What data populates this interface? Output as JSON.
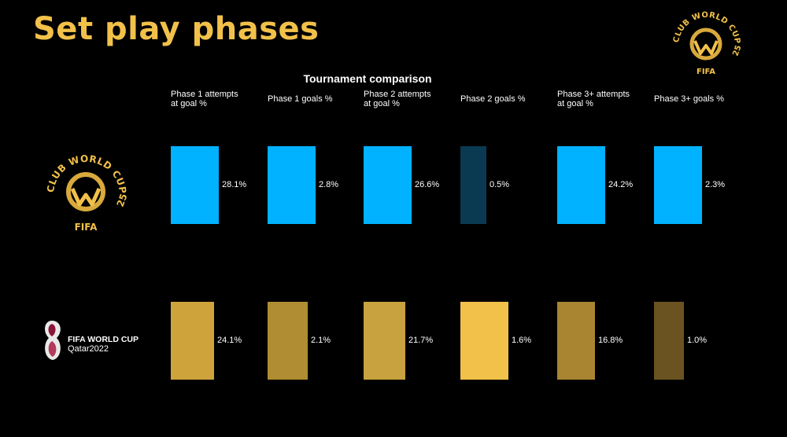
{
  "page": {
    "title": "Set play phases",
    "subtitle": "Tournament comparison"
  },
  "logos": {
    "club_world_cup": {
      "line1": "CLUB WORLD CUP",
      "line2": "25",
      "wordmark": "FIFA"
    },
    "qatar_2022": {
      "line1": "FIFA WORLD CUP",
      "line2": "Qatar2022"
    }
  },
  "colors": {
    "title": "#f2c14a",
    "cwc_bar": "#00b2ff",
    "cwc_bar_dim": "#0a3a52",
    "qatar_bars": [
      "#cfa33c",
      "#b08c33",
      "#c8a23e",
      "#f2c14a",
      "#a98531",
      "#6b5321"
    ]
  },
  "chart_data": {
    "type": "bar",
    "title": "Tournament comparison",
    "categories": [
      [
        "Phase 1 attempts",
        "at goal %"
      ],
      [
        "Phase 1 goals %"
      ],
      [
        "Phase 2 attempts",
        "at goal %"
      ],
      [
        "Phase 2 goals %"
      ],
      [
        "Phase 3+ attempts",
        "at goal %"
      ],
      [
        "Phase 3+ goals %"
      ]
    ],
    "series": [
      {
        "name": "FIFA Club World Cup 2025",
        "values": [
          28.1,
          2.8,
          26.6,
          0.5,
          24.2,
          2.3
        ],
        "labels": [
          "28.1%",
          "2.8%",
          "26.6%",
          "0.5%",
          "24.2%",
          "2.3%"
        ]
      },
      {
        "name": "FIFA World Cup Qatar 2022",
        "values": [
          24.1,
          2.1,
          21.7,
          1.6,
          16.8,
          1.0
        ],
        "labels": [
          "24.1%",
          "2.1%",
          "21.7%",
          "1.6%",
          "16.8%",
          "1.0%"
        ]
      }
    ]
  }
}
